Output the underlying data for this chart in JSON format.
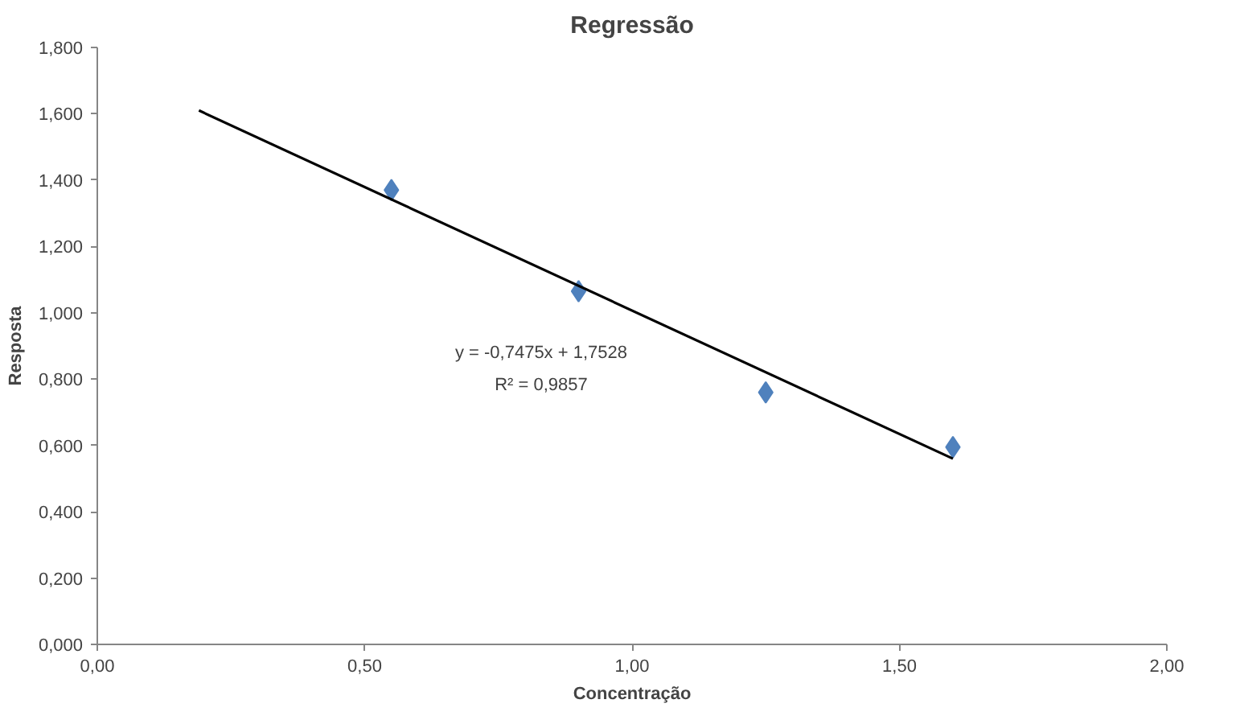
{
  "chart_data": {
    "type": "scatter",
    "title": "Regressão",
    "xlabel": "Concentração",
    "ylabel": "Resposta",
    "series": [
      {
        "color": "#4f81bd",
        "marker": "diamond",
        "x": [
          0.55,
          0.9,
          1.25,
          1.6
        ],
        "values": [
          1.37,
          1.065,
          0.76,
          0.595
        ]
      },
      {
        "type": "line",
        "marker": "none",
        "color": "#000000",
        "x": [
          0.19,
          1.6
        ],
        "values": [
          1.61,
          0.56
        ]
      }
    ],
    "grid": false,
    "xlim": [
      0,
      2
    ],
    "ylim": [
      0,
      1.8
    ],
    "xticks": [
      {
        "value": 0,
        "label": "0,00"
      },
      {
        "value": 0.5,
        "label": "0,50"
      },
      {
        "value": 1,
        "label": "1,00"
      },
      {
        "value": 1.5,
        "label": "1,50"
      },
      {
        "value": 2,
        "label": "2,00"
      }
    ],
    "yticks": [
      {
        "value": 0,
        "label": "0,000"
      },
      {
        "value": 0.2,
        "label": "0,200"
      },
      {
        "value": 0.4,
        "label": "0,400"
      },
      {
        "value": 0.6,
        "label": "0,600"
      },
      {
        "value": 0.8,
        "label": "0,800"
      },
      {
        "value": 1.0,
        "label": "1,000"
      },
      {
        "value": 1.2,
        "label": "1,200"
      },
      {
        "value": 1.4,
        "label": "1,400"
      },
      {
        "value": 1.6,
        "label": "1,600"
      },
      {
        "value": 1.8,
        "label": "1,800"
      }
    ],
    "annotations": [
      "y = -0,7475x + 1,7528",
      "R² = 0,9857"
    ]
  }
}
